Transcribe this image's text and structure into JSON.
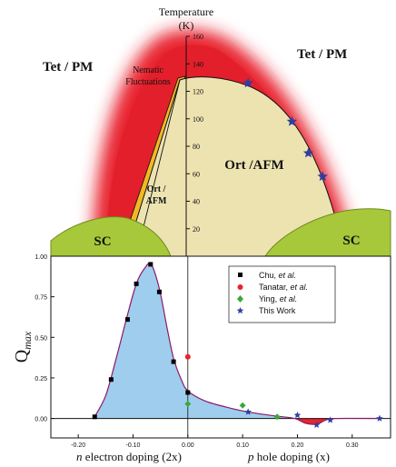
{
  "chart_data": [
    {
      "type": "phase-diagram",
      "title": "",
      "y_axis_label_line1": "Temperature",
      "y_axis_label_line2": "(K)",
      "ylim": [
        0,
        160
      ],
      "y_ticks": [
        "20",
        "40",
        "60",
        "80",
        "100",
        "120",
        "140",
        "160"
      ],
      "regions": {
        "tet_pm_left": "Tet / PM",
        "tet_pm_right": "Tet / PM",
        "nematic_line1": "Nematic",
        "nematic_line2": "Fluctuations",
        "ort_afm_main": "Ort /AFM",
        "ort_afm_small_line1": "Ort /",
        "ort_afm_small_line2": "AFM",
        "sc_left": "SC",
        "sc_right": "SC"
      },
      "colors": {
        "fluctuations": "#e8232d",
        "ort_afm": "#ede3b1",
        "sc": "#a7c83a",
        "nematic_band": "#f2b824"
      },
      "this_work_points": [
        {
          "x": 0.11,
          "y": 126
        },
        {
          "x": 0.19,
          "y": 98
        },
        {
          "x": 0.22,
          "y": 75
        },
        {
          "x": 0.246,
          "y": 58
        }
      ]
    },
    {
      "type": "scatter",
      "ylabel": "Q",
      "ylabel_subscript": "max",
      "xlabel_left": "n electron doping (2x)",
      "xlabel_right": "p hole doping (x)",
      "xlim": [
        -0.25,
        0.37
      ],
      "ylim": [
        -0.12,
        1.0
      ],
      "x_ticks": [
        "-0.20",
        "-0.10",
        "0.00",
        "0.10",
        "0.20",
        "0.30"
      ],
      "y_ticks": [
        "0.00",
        "0.25",
        "0.50",
        "0.75",
        "1.00"
      ],
      "legend_position": "top-right",
      "series": [
        {
          "name": "Chu, et al.",
          "marker": "square",
          "color": "#000000",
          "points": [
            {
              "x": -0.17,
              "y": 0.01
            },
            {
              "x": -0.14,
              "y": 0.24
            },
            {
              "x": -0.11,
              "y": 0.61
            },
            {
              "x": -0.094,
              "y": 0.83
            },
            {
              "x": -0.068,
              "y": 0.95
            },
            {
              "x": -0.052,
              "y": 0.78
            },
            {
              "x": -0.026,
              "y": 0.35
            },
            {
              "x": 0.0,
              "y": 0.16
            }
          ]
        },
        {
          "name": "Tanatar, et al.",
          "marker": "circle",
          "color": "#e8232d",
          "points": [
            {
              "x": 0.0,
              "y": 0.38
            }
          ]
        },
        {
          "name": "Ying, et al.",
          "marker": "diamond",
          "color": "#3aa93a",
          "points": [
            {
              "x": 0.0,
              "y": 0.09
            },
            {
              "x": 0.1,
              "y": 0.08
            },
            {
              "x": 0.163,
              "y": 0.01
            }
          ]
        },
        {
          "name": "This Work",
          "marker": "star",
          "color": "#2f3fa0",
          "points": [
            {
              "x": 0.11,
              "y": 0.04
            },
            {
              "x": 0.2,
              "y": 0.02
            },
            {
              "x": 0.235,
              "y": -0.04
            },
            {
              "x": 0.26,
              "y": -0.01
            },
            {
              "x": 0.35,
              "y": 0.0
            }
          ]
        }
      ],
      "legend_prefix": {
        "chu": "Chu, ",
        "tanatar": "Tanatar, ",
        "ying": "Ying, ",
        "etal": "et al."
      },
      "legend_plain": {
        "this_work": "This Work"
      },
      "xlabel_parts": {
        "n": "n",
        "n_rest": " electron doping (2x)",
        "p": "p",
        "p_rest": " hole doping (x)"
      }
    }
  ]
}
